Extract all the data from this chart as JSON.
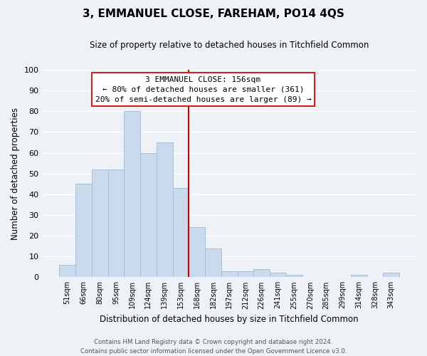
{
  "title": "3, EMMANUEL CLOSE, FAREHAM, PO14 4QS",
  "subtitle": "Size of property relative to detached houses in Titchfield Common",
  "xlabel": "Distribution of detached houses by size in Titchfield Common",
  "ylabel": "Number of detached properties",
  "bar_color": "#c8daeb",
  "bar_edge_color": "#a8c0d6",
  "background_color": "#eef2f7",
  "grid_color": "#ffffff",
  "bin_labels": [
    "51sqm",
    "66sqm",
    "80sqm",
    "95sqm",
    "109sqm",
    "124sqm",
    "139sqm",
    "153sqm",
    "168sqm",
    "182sqm",
    "197sqm",
    "212sqm",
    "226sqm",
    "241sqm",
    "255sqm",
    "270sqm",
    "285sqm",
    "299sqm",
    "314sqm",
    "328sqm",
    "343sqm"
  ],
  "bar_heights": [
    6,
    45,
    52,
    52,
    80,
    60,
    65,
    43,
    24,
    14,
    3,
    3,
    4,
    2,
    1,
    0,
    0,
    0,
    1,
    0,
    2
  ],
  "vline_x": 7.5,
  "vline_color": "#cc0000",
  "ylim": [
    0,
    100
  ],
  "yticks": [
    0,
    10,
    20,
    30,
    40,
    50,
    60,
    70,
    80,
    90,
    100
  ],
  "annotation_title": "3 EMMANUEL CLOSE: 156sqm",
  "annotation_line1": "← 80% of detached houses are smaller (361)",
  "annotation_line2": "20% of semi-detached houses are larger (89) →",
  "footer_line1": "Contains HM Land Registry data © Crown copyright and database right 2024.",
  "footer_line2": "Contains public sector information licensed under the Open Government Licence v3.0."
}
